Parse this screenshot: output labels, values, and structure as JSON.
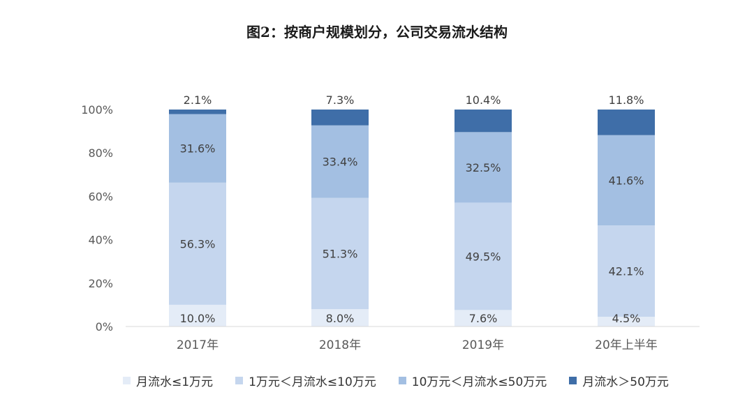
{
  "title": "图2：按商户规模划分，公司交易流水结构",
  "chart_data": {
    "type": "bar",
    "stacked": true,
    "categories": [
      "2017年",
      "2018年",
      "2019年",
      "20年上半年"
    ],
    "ylim": [
      0,
      100
    ],
    "yticks": [
      "0%",
      "20%",
      "40%",
      "60%",
      "80%",
      "100%"
    ],
    "grid": false,
    "legend_position": "bottom",
    "series": [
      {
        "name": "月流水≤1万元",
        "color": "#e4ecf7",
        "values": [
          10.0,
          8.0,
          7.6,
          4.5
        ],
        "labels": [
          "10.0%",
          "8.0%",
          "7.6%",
          "4.5%"
        ]
      },
      {
        "name": "1万元＜月流水≤10万元",
        "color": "#c5d6ee",
        "values": [
          56.3,
          51.3,
          49.5,
          42.1
        ],
        "labels": [
          "56.3%",
          "51.3%",
          "49.5%",
          "42.1%"
        ]
      },
      {
        "name": "10万元＜月流水≤50万元",
        "color": "#a3bfe2",
        "values": [
          31.6,
          33.4,
          32.5,
          41.6
        ],
        "labels": [
          "31.6%",
          "33.4%",
          "32.5%",
          "41.6%"
        ]
      },
      {
        "name": "月流水＞50万元",
        "color": "#3f6ea8",
        "values": [
          2.1,
          7.3,
          10.4,
          11.8
        ],
        "labels": [
          "2.1%",
          "7.3%",
          "10.4%",
          "11.8%"
        ]
      }
    ]
  }
}
